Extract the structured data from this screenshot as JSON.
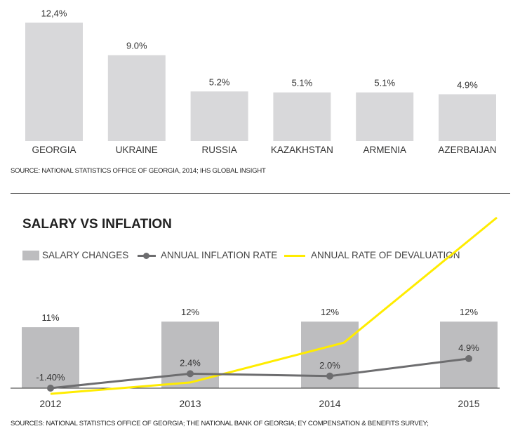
{
  "chart_data": [
    {
      "type": "bar",
      "title": "",
      "categories": [
        "GEORGIA",
        "UKRAINE",
        "RUSSIA",
        "KAZAKHSTAN",
        "ARMENIA",
        "AZERBAIJAN"
      ],
      "values": [
        12.4,
        9.0,
        5.2,
        5.1,
        5.1,
        4.9
      ],
      "value_labels": [
        "12,4%",
        "9.0%",
        "5.2%",
        "5.1%",
        "5.1%",
        "4.9%"
      ],
      "source": "SOURCE: NATIONAL STATISTICS OFFICE OF GEORGIA, 2014; IHS GLOBAL INSIGHT",
      "colors": {
        "bar": "#d8d8da"
      }
    },
    {
      "type": "bar+line",
      "title": "SALARY VS INFLATION",
      "categories": [
        "2012",
        "2013",
        "2014",
        "2015"
      ],
      "legend": [
        "SALARY CHANGES",
        "ANNUAL INFLATION RATE",
        "ANNUAL RATE OF DEVALUATION"
      ],
      "series": [
        {
          "name": "SALARY CHANGES",
          "type": "bar",
          "values": [
            11,
            12,
            12,
            12
          ],
          "labels": [
            "11%",
            "12%",
            "12%",
            "12%"
          ],
          "color": "#bdbdbf"
        },
        {
          "name": "ANNUAL INFLATION RATE",
          "type": "line",
          "values": [
            -1.4,
            2.4,
            2.0,
            4.9
          ],
          "labels": [
            "-1.40%",
            "2.4%",
            "2.0%",
            "4.9%"
          ],
          "color": "#6d6d6f"
        },
        {
          "name": "ANNUAL RATE OF DEVALUATION",
          "type": "line",
          "values": [
            -1,
            1,
            8,
            30
          ],
          "color": "#ffec00"
        }
      ],
      "source": "SOURCES: NATIONAL STATISTICS OFFICE OF GEORGIA; THE NATIONAL BANK OF GEORGIA; EY COMPENSATION & BENEFITS SURVEY;"
    }
  ]
}
